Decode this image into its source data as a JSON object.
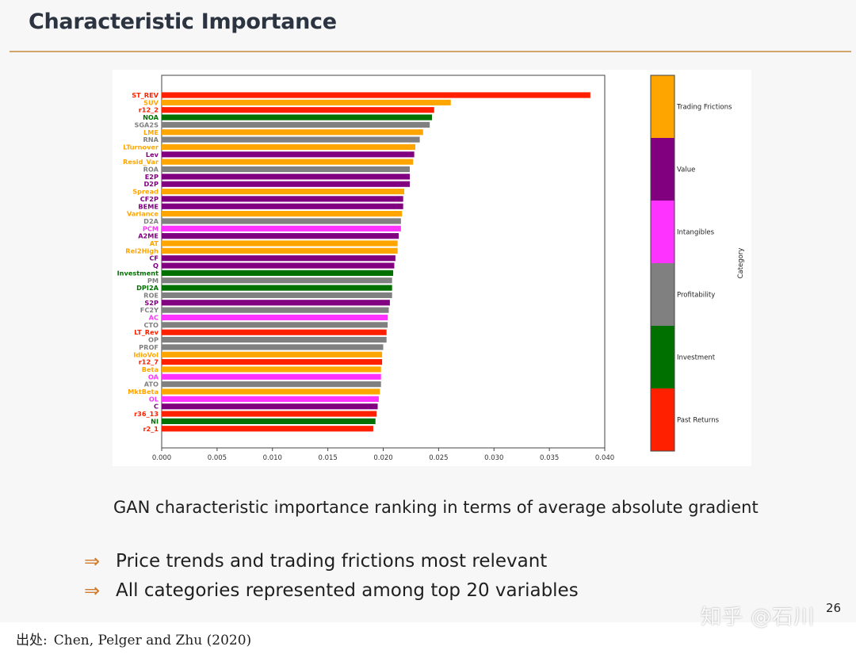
{
  "slide": {
    "title": "Characteristic Importance",
    "caption": "GAN characteristic importance ranking in terms of average absolute gradient",
    "bullets": [
      "Price trends and trading frictions most relevant",
      "All categories represented among top 20 variables"
    ],
    "bullet_glyph": "⇒",
    "page_number": "26"
  },
  "watermark": "知乎 @石川",
  "source": {
    "label": "出处:",
    "text": "Chen, Pelger and Zhu (2020)"
  },
  "colors": {
    "Trading Frictions": "#ffa500",
    "Value": "#800080",
    "Intangibles": "#ff33ff",
    "Profitability": "#808080",
    "Investment": "#007000",
    "Past Returns": "#ff2000",
    "accent_rule": "#d4a56a",
    "arrow": "#d07a2c"
  },
  "chart_data": {
    "type": "bar",
    "orientation": "horizontal",
    "xlim": [
      0,
      0.04
    ],
    "xticks": [
      "0.000",
      "0.005",
      "0.010",
      "0.015",
      "0.020",
      "0.025",
      "0.030",
      "0.035",
      "0.040"
    ],
    "xtick_values": [
      0,
      0.005,
      0.01,
      0.015,
      0.02,
      0.025,
      0.03,
      0.035,
      0.04
    ],
    "legend_title": "Category",
    "legend_placement": "right",
    "categories_legend": [
      "Trading Frictions",
      "Value",
      "Intangibles",
      "Profitability",
      "Investment",
      "Past Returns"
    ],
    "bars": [
      {
        "label": "ST_REV",
        "value": 0.0387,
        "category": "Past Returns"
      },
      {
        "label": "SUV",
        "value": 0.0261,
        "category": "Trading Frictions"
      },
      {
        "label": "r12_2",
        "value": 0.0246,
        "category": "Past Returns"
      },
      {
        "label": "NOA",
        "value": 0.0244,
        "category": "Investment"
      },
      {
        "label": "SGA2S",
        "value": 0.0242,
        "category": "Profitability"
      },
      {
        "label": "LME",
        "value": 0.0236,
        "category": "Trading Frictions"
      },
      {
        "label": "RNA",
        "value": 0.0233,
        "category": "Profitability"
      },
      {
        "label": "LTurnover",
        "value": 0.0229,
        "category": "Trading Frictions"
      },
      {
        "label": "Lev",
        "value": 0.0228,
        "category": "Value"
      },
      {
        "label": "Resid_Var",
        "value": 0.0227,
        "category": "Trading Frictions"
      },
      {
        "label": "ROA",
        "value": 0.0224,
        "category": "Profitability"
      },
      {
        "label": "E2P",
        "value": 0.0224,
        "category": "Value"
      },
      {
        "label": "D2P",
        "value": 0.0224,
        "category": "Value"
      },
      {
        "label": "Spread",
        "value": 0.0219,
        "category": "Trading Frictions"
      },
      {
        "label": "CF2P",
        "value": 0.0218,
        "category": "Value"
      },
      {
        "label": "BEME",
        "value": 0.0218,
        "category": "Value"
      },
      {
        "label": "Variance",
        "value": 0.0217,
        "category": "Trading Frictions"
      },
      {
        "label": "D2A",
        "value": 0.0216,
        "category": "Profitability"
      },
      {
        "label": "PCM",
        "value": 0.0216,
        "category": "Intangibles"
      },
      {
        "label": "A2ME",
        "value": 0.0214,
        "category": "Value"
      },
      {
        "label": "AT",
        "value": 0.0213,
        "category": "Trading Frictions"
      },
      {
        "label": "Rel2High",
        "value": 0.0213,
        "category": "Trading Frictions"
      },
      {
        "label": "CF",
        "value": 0.0211,
        "category": "Value"
      },
      {
        "label": "Q",
        "value": 0.021,
        "category": "Value"
      },
      {
        "label": "Investment",
        "value": 0.0209,
        "category": "Investment"
      },
      {
        "label": "PM",
        "value": 0.0208,
        "category": "Profitability"
      },
      {
        "label": "DPI2A",
        "value": 0.0208,
        "category": "Investment"
      },
      {
        "label": "ROE",
        "value": 0.0208,
        "category": "Profitability"
      },
      {
        "label": "S2P",
        "value": 0.0206,
        "category": "Value"
      },
      {
        "label": "FC2Y",
        "value": 0.0205,
        "category": "Profitability"
      },
      {
        "label": "AC",
        "value": 0.0204,
        "category": "Intangibles"
      },
      {
        "label": "CTO",
        "value": 0.0204,
        "category": "Profitability"
      },
      {
        "label": "LT_Rev",
        "value": 0.0203,
        "category": "Past Returns"
      },
      {
        "label": "OP",
        "value": 0.0203,
        "category": "Profitability"
      },
      {
        "label": "PROF",
        "value": 0.02,
        "category": "Profitability"
      },
      {
        "label": "IdioVol",
        "value": 0.0199,
        "category": "Trading Frictions"
      },
      {
        "label": "r12_7",
        "value": 0.0199,
        "category": "Past Returns"
      },
      {
        "label": "Beta",
        "value": 0.0198,
        "category": "Trading Frictions"
      },
      {
        "label": "OA",
        "value": 0.0198,
        "category": "Intangibles"
      },
      {
        "label": "ATO",
        "value": 0.0198,
        "category": "Profitability"
      },
      {
        "label": "MktBeta",
        "value": 0.0197,
        "category": "Trading Frictions"
      },
      {
        "label": "OL",
        "value": 0.0196,
        "category": "Intangibles"
      },
      {
        "label": "C",
        "value": 0.0195,
        "category": "Value"
      },
      {
        "label": "r36_13",
        "value": 0.0194,
        "category": "Past Returns"
      },
      {
        "label": "NI",
        "value": 0.0193,
        "category": "Investment"
      },
      {
        "label": "r2_1",
        "value": 0.0191,
        "category": "Past Returns"
      }
    ]
  }
}
